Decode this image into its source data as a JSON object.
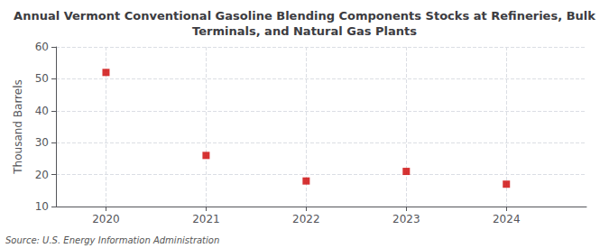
{
  "chart_data": {
    "type": "scatter",
    "title": "Annual Vermont Conventional Gasoline Blending Components Stocks at Refineries, Bulk\nTerminals, and Natural Gas Plants",
    "ylabel": "Thousand Barrels",
    "source": "Source: U.S. Energy Information Administration",
    "x": [
      2020,
      2021,
      2022,
      2023,
      2024
    ],
    "values": [
      52,
      26,
      18,
      21,
      17
    ],
    "color": "#cc0000",
    "marker": "square",
    "xlim": [
      2019.5,
      2024.8
    ],
    "xticks": [
      2020,
      2021,
      2022,
      2023,
      2024
    ],
    "ylim": [
      10,
      60
    ],
    "yticks": [
      10,
      20,
      30,
      40,
      50,
      60
    ],
    "grid": true
  }
}
